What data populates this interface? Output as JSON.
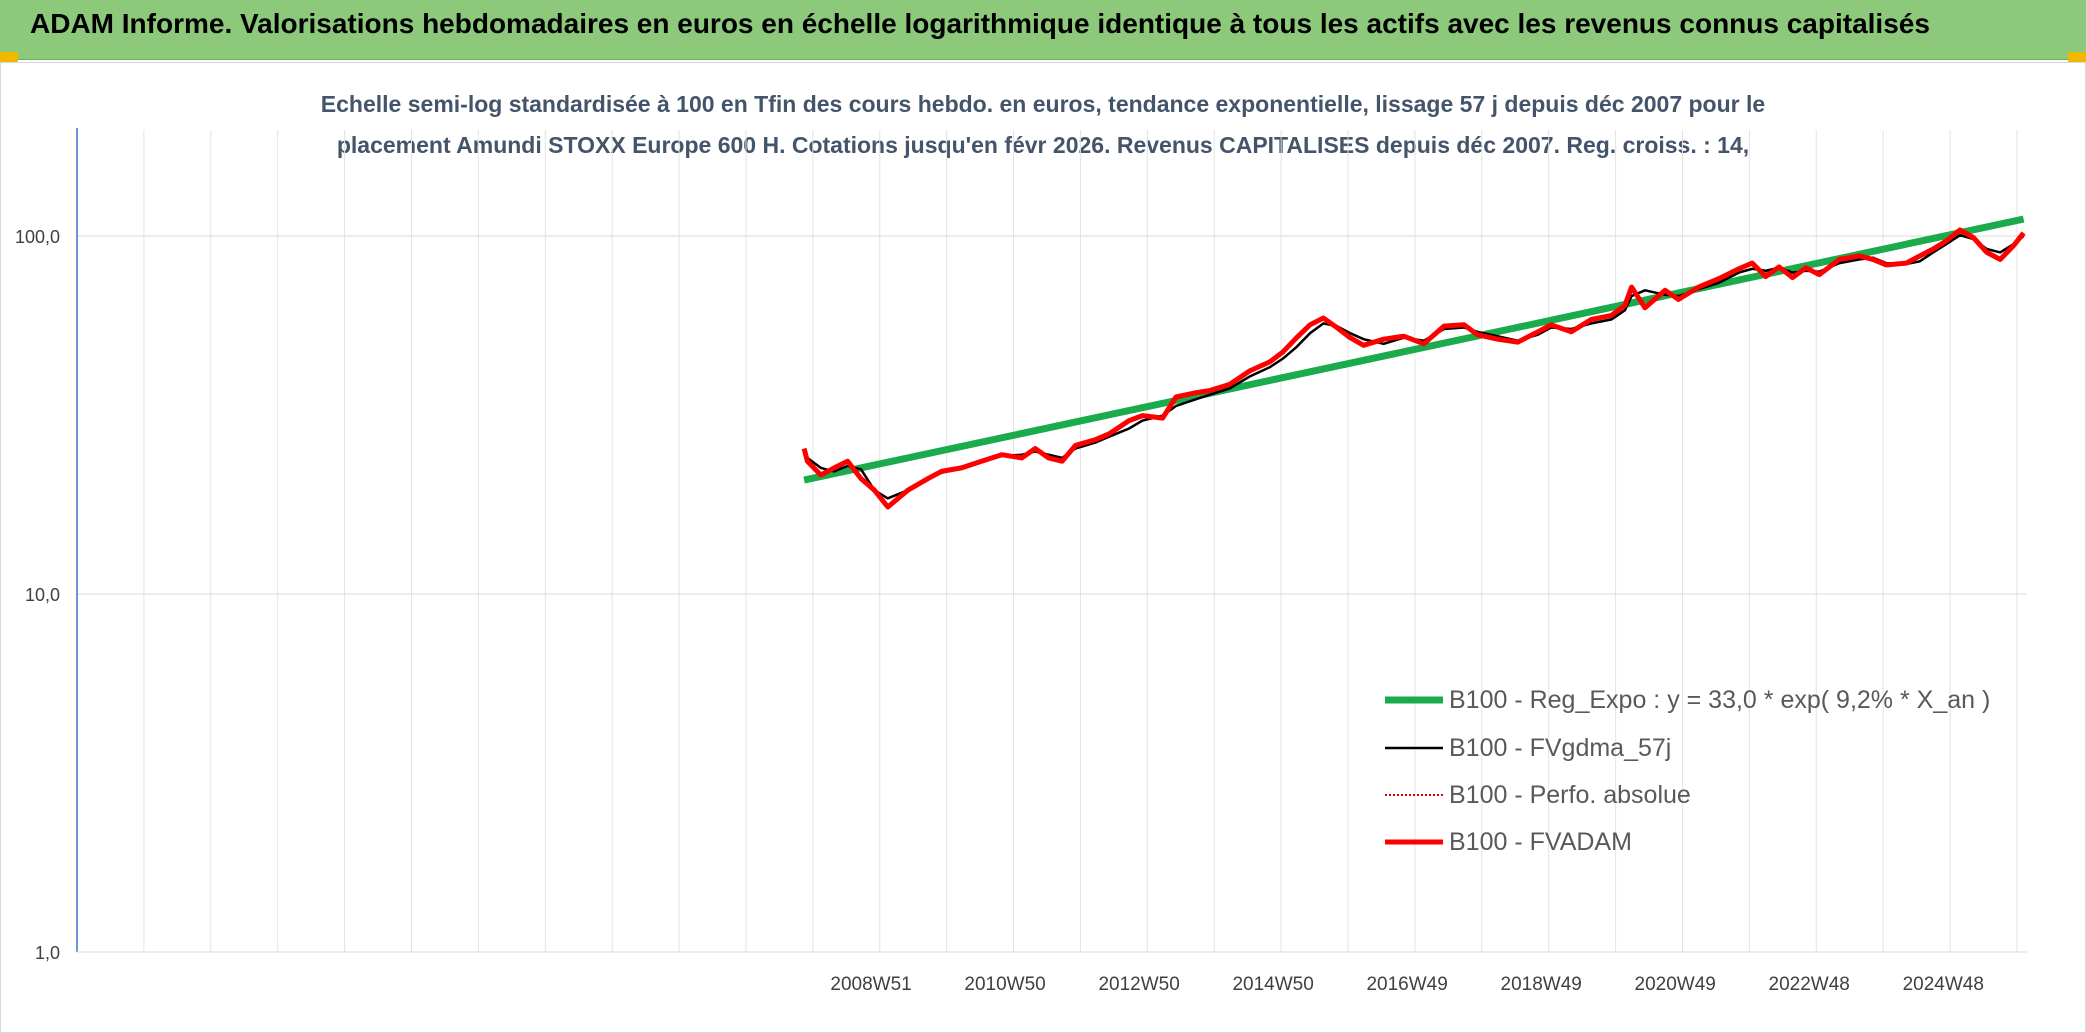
{
  "header": {
    "title": "ADAM Informe. Valorisations hebdomadaires en euros en échelle logarithmique identique à tous les actifs avec les revenus connus capitalisés"
  },
  "colors": {
    "header_bg": "#8cc97b",
    "accent_corner": "#f2b800",
    "subtitle": "#44546a",
    "trend": "#1aab4c",
    "fvgdma": "#000000",
    "perfo": "#e00000",
    "fvadam": "#ff0000"
  },
  "chart_data": {
    "type": "line",
    "title_lines": [
      "Echelle semi-log standardisée à 100 en Tfin des cours hebdo. en euros, tendance exponentielle, lissage 57 j depuis déc 2007 pour le",
      "placement Amundi STOXX Europe 600 H. Cotations jusqu'en févr 2026. Revenus CAPITALISES depuis déc 2007. Reg. croiss. : 14,"
    ],
    "y_scale": "log",
    "ylim": [
      1,
      100
    ],
    "y_ticks": [
      "100,0",
      "10,0",
      "1,0"
    ],
    "x_tick_labels": [
      "2008W51",
      "2010W50",
      "2012W50",
      "2014W50",
      "2016W49",
      "2018W49",
      "2020W49",
      "2022W48",
      "2024W48"
    ],
    "x_range_years": [
      1997.1,
      2026.2
    ],
    "grid": true,
    "legend_position": "right",
    "series": [
      {
        "name": "B100 - Reg_Expo : y = 33,0 * exp( 9,2% *  X_an )",
        "style": "trend",
        "x": [
          2007.95,
          2026.15
        ],
        "y": [
          20.8,
          111.5
        ]
      },
      {
        "name": "B100 - FVgdma_57j",
        "style": "smoothed",
        "x": [
          2007.95,
          2008.0,
          2008.2,
          2008.4,
          2008.6,
          2008.8,
          2009.0,
          2009.2,
          2009.5,
          2009.8,
          2010.0,
          2010.3,
          2010.6,
          2010.9,
          2011.2,
          2011.4,
          2011.6,
          2011.8,
          2012.0,
          2012.3,
          2012.5,
          2012.8,
          2013.0,
          2013.3,
          2013.5,
          2013.8,
          2014.0,
          2014.3,
          2014.6,
          2014.9,
          2015.1,
          2015.3,
          2015.5,
          2015.7,
          2015.9,
          2016.1,
          2016.3,
          2016.6,
          2016.9,
          2017.2,
          2017.5,
          2017.8,
          2018.0,
          2018.3,
          2018.6,
          2018.9,
          2019.1,
          2019.4,
          2019.7,
          2020.0,
          2020.2,
          2020.3,
          2020.5,
          2020.8,
          2021.0,
          2021.3,
          2021.6,
          2021.9,
          2022.1,
          2022.3,
          2022.5,
          2022.7,
          2022.9,
          2023.1,
          2023.4,
          2023.7,
          2023.9,
          2024.1,
          2024.4,
          2024.6,
          2024.8,
          2025.0,
          2025.2,
          2025.4,
          2025.6,
          2025.8,
          2026.0,
          2026.15
        ],
        "y": [
          24.5,
          24.0,
          22.5,
          22.0,
          22.8,
          22.3,
          19.5,
          18.5,
          19.5,
          21.0,
          21.8,
          22.5,
          23.5,
          24.3,
          24.5,
          25.0,
          24.5,
          24.0,
          25.5,
          26.5,
          27.5,
          29.0,
          30.5,
          31.5,
          33.5,
          35.0,
          36.0,
          37.5,
          40.5,
          43.0,
          45.5,
          49.0,
          53.5,
          57.0,
          56.0,
          53.5,
          51.5,
          50.0,
          52.0,
          51.0,
          55.0,
          55.5,
          54.0,
          52.5,
          51.0,
          53.0,
          55.5,
          55.0,
          57.0,
          58.5,
          62.0,
          68.0,
          70.5,
          68.5,
          68.0,
          71.0,
          74.0,
          79.0,
          81.0,
          80.0,
          81.5,
          79.0,
          80.0,
          79.5,
          84.0,
          86.0,
          87.0,
          84.0,
          83.5,
          85.0,
          90.0,
          95.0,
          100.5,
          98.0,
          92.0,
          90.0,
          95.0,
          100.0
        ]
      },
      {
        "name": "B100 - Perfo. absolue",
        "style": "dotted",
        "x": [],
        "y": []
      },
      {
        "name": "B100 - FVADAM",
        "style": "thick",
        "x": [
          2007.95,
          2008.0,
          2008.2,
          2008.4,
          2008.6,
          2008.8,
          2009.0,
          2009.2,
          2009.5,
          2009.8,
          2010.0,
          2010.3,
          2010.6,
          2010.9,
          2011.2,
          2011.4,
          2011.6,
          2011.8,
          2012.0,
          2012.3,
          2012.5,
          2012.8,
          2013.0,
          2013.3,
          2013.5,
          2013.8,
          2014.0,
          2014.3,
          2014.6,
          2014.9,
          2015.1,
          2015.3,
          2015.5,
          2015.7,
          2015.9,
          2016.1,
          2016.3,
          2016.6,
          2016.9,
          2017.2,
          2017.5,
          2017.8,
          2018.0,
          2018.3,
          2018.6,
          2018.9,
          2019.1,
          2019.4,
          2019.7,
          2020.0,
          2020.2,
          2020.3,
          2020.5,
          2020.8,
          2021.0,
          2021.3,
          2021.6,
          2021.9,
          2022.1,
          2022.3,
          2022.5,
          2022.7,
          2022.9,
          2023.1,
          2023.4,
          2023.7,
          2023.9,
          2024.1,
          2024.4,
          2024.6,
          2024.8,
          2025.0,
          2025.2,
          2025.4,
          2025.6,
          2025.8,
          2026.0,
          2026.15
        ],
        "y": [
          25.5,
          23.5,
          21.5,
          22.5,
          23.5,
          21.0,
          19.5,
          17.5,
          19.5,
          21.0,
          22.0,
          22.5,
          23.5,
          24.5,
          24.0,
          25.5,
          24.0,
          23.5,
          26.0,
          27.0,
          28.0,
          30.5,
          31.5,
          31.0,
          35.5,
          36.5,
          37.0,
          38.5,
          42.0,
          44.5,
          47.5,
          52.0,
          56.5,
          59.0,
          55.5,
          52.0,
          49.5,
          51.5,
          52.5,
          50.0,
          56.0,
          56.5,
          53.0,
          51.5,
          50.5,
          54.0,
          56.5,
          54.0,
          58.5,
          60.0,
          64.0,
          72.0,
          63.0,
          70.5,
          66.5,
          72.0,
          76.0,
          81.0,
          84.0,
          77.0,
          82.0,
          76.5,
          81.5,
          78.0,
          86.0,
          88.0,
          86.0,
          83.0,
          84.0,
          88.0,
          92.0,
          97.0,
          104.0,
          99.0,
          90.0,
          86.0,
          94.0,
          102.0
        ]
      }
    ]
  }
}
